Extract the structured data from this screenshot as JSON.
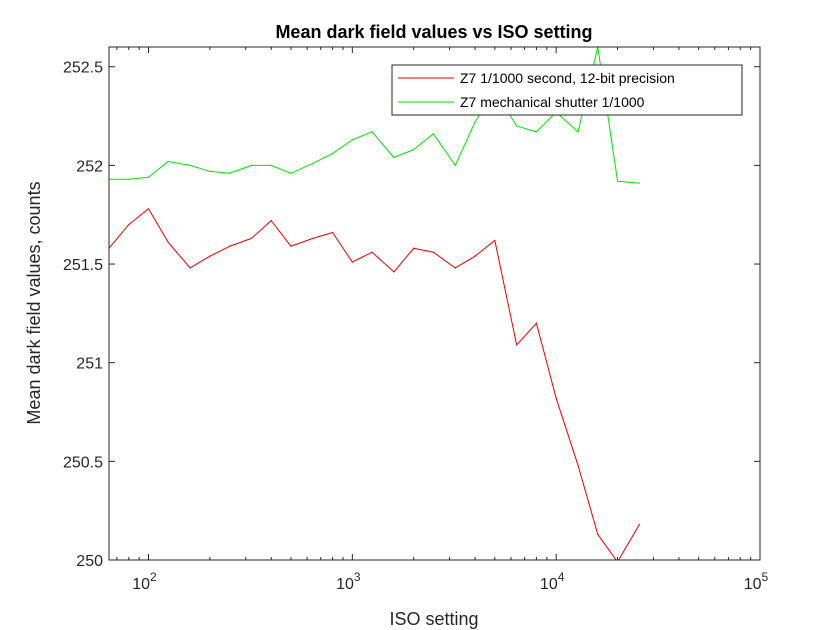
{
  "chart_data": {
    "type": "line",
    "title": "Mean dark field values vs ISO setting",
    "xlabel": "ISO setting",
    "ylabel": "Mean dark field values, counts",
    "xscale": "log",
    "xlim": [
      64,
      100000
    ],
    "ylim": [
      250,
      252.6
    ],
    "x_ticks": [
      {
        "value": 100,
        "base": "10",
        "exp": "2"
      },
      {
        "value": 1000,
        "base": "10",
        "exp": "3"
      },
      {
        "value": 10000,
        "base": "10",
        "exp": "4"
      },
      {
        "value": 100000,
        "base": "10",
        "exp": "5"
      }
    ],
    "y_ticks": [
      {
        "value": 250,
        "label": "250"
      },
      {
        "value": 250.5,
        "label": "250.5"
      },
      {
        "value": 251,
        "label": "251"
      },
      {
        "value": 251.5,
        "label": "251.5"
      },
      {
        "value": 252,
        "label": "252"
      },
      {
        "value": 252.5,
        "label": "252.5"
      }
    ],
    "grid": false,
    "box": true,
    "legend_position": "top-right",
    "x": [
      64,
      80,
      100,
      125,
      160,
      200,
      250,
      320,
      400,
      500,
      640,
      800,
      1000,
      1250,
      1600,
      2000,
      2500,
      3200,
      4000,
      5000,
      6400,
      8000,
      10000,
      12800,
      16000,
      20000,
      25600
    ],
    "series": [
      {
        "name": "Z7 1/1000 second, 12-bit precision",
        "color": "#e00000",
        "values": [
          251.58,
          251.7,
          251.78,
          251.61,
          251.48,
          251.54,
          251.59,
          251.63,
          251.72,
          251.59,
          251.63,
          251.66,
          251.51,
          251.56,
          251.46,
          251.58,
          251.56,
          251.48,
          251.54,
          251.62,
          251.09,
          251.2,
          250.82,
          250.48,
          250.13,
          249.99,
          250.18
        ]
      },
      {
        "name": "Z7 mechanical shutter 1/1000",
        "color": "#00e000",
        "values": [
          251.93,
          251.93,
          251.94,
          252.02,
          252.0,
          251.97,
          251.96,
          252.0,
          252.0,
          251.96,
          252.01,
          252.06,
          252.13,
          252.17,
          252.04,
          252.08,
          252.16,
          252.0,
          252.22,
          252.38,
          252.2,
          252.17,
          252.27,
          252.17,
          252.6,
          251.92,
          251.91
        ]
      }
    ]
  }
}
